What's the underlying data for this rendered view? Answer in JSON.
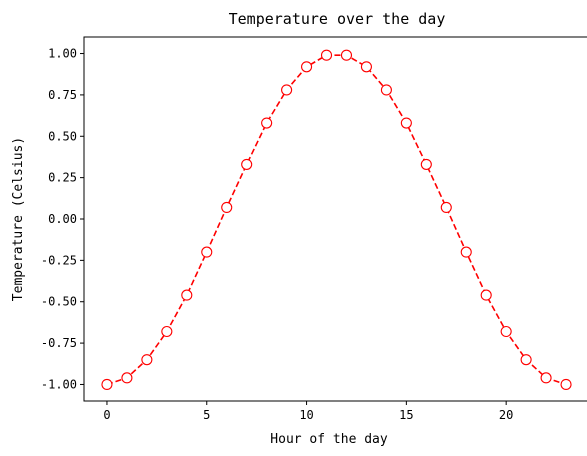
{
  "chart_data": {
    "type": "line",
    "title": "Temperature over the day",
    "xlabel": "Hour of the day",
    "ylabel": "Temperature (Celsius)",
    "x": [
      0,
      1,
      2,
      3,
      4,
      5,
      6,
      7,
      8,
      9,
      10,
      11,
      12,
      13,
      14,
      15,
      16,
      17,
      18,
      19,
      20,
      21,
      22,
      23
    ],
    "series": [
      {
        "values": [
          -1.0,
          -0.96,
          -0.85,
          -0.68,
          -0.46,
          -0.2,
          0.07,
          0.33,
          0.58,
          0.78,
          0.92,
          0.99,
          0.99,
          0.92,
          0.78,
          0.58,
          0.33,
          0.07,
          -0.2,
          -0.46,
          -0.68,
          -0.85,
          -0.96,
          -1.0
        ],
        "color": "#ff0000",
        "linestyle": "dashed",
        "marker": "circle-open"
      }
    ],
    "xlim": [
      -1.15,
      24.15
    ],
    "ylim": [
      -1.1,
      1.1
    ],
    "xticks": [
      0,
      5,
      10,
      15,
      20
    ],
    "xtick_labels": [
      "0",
      "5",
      "10",
      "15",
      "20"
    ],
    "yticks": [
      -1.0,
      -0.75,
      -0.5,
      -0.25,
      0.0,
      0.25,
      0.5,
      0.75,
      1.0
    ],
    "ytick_labels": [
      "-1.00",
      "-0.75",
      "-0.50",
      "-0.25",
      "0.00",
      "0.25",
      "0.50",
      "0.75",
      "1.00"
    ],
    "grid": false,
    "legend": "none"
  }
}
